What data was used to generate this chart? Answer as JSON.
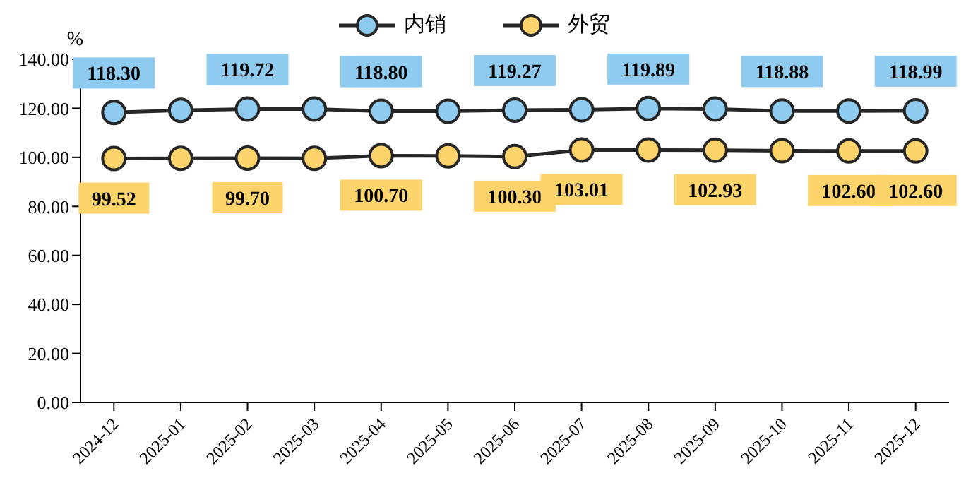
{
  "chart_data": {
    "type": "line",
    "ylabel": "%",
    "categories": [
      "2024-12",
      "2025-01",
      "2025-02",
      "2025-03",
      "2025-04",
      "2025-05",
      "2025-06",
      "2025-07",
      "2025-08",
      "2025-09",
      "2025-10",
      "2025-11",
      "2025-12"
    ],
    "series": [
      {
        "name": "内销",
        "color": "#8ecbef",
        "values": [
          118.3,
          119.2,
          119.72,
          119.7,
          118.8,
          118.8,
          119.27,
          119.4,
          119.89,
          119.7,
          118.88,
          118.9,
          118.99
        ],
        "value_labels": [
          "118.30",
          null,
          "119.72",
          null,
          "118.80",
          null,
          "119.27",
          null,
          "119.89",
          null,
          "118.88",
          null,
          "118.99"
        ]
      },
      {
        "name": "外贸",
        "color": "#fdd46b",
        "values": [
          99.52,
          99.6,
          99.7,
          99.6,
          100.7,
          100.6,
          100.3,
          103.01,
          103.0,
          102.93,
          102.7,
          102.6,
          102.6
        ],
        "value_labels": [
          "99.52",
          null,
          "99.70",
          null,
          "100.70",
          null,
          "100.30",
          "103.01",
          null,
          "102.93",
          null,
          "102.60",
          "102.60"
        ]
      }
    ],
    "ylim": [
      0,
      140
    ],
    "yticks": [
      {
        "value": 0,
        "label": "0.00"
      },
      {
        "value": 20,
        "label": "20.00"
      },
      {
        "value": 40,
        "label": "40.00"
      },
      {
        "value": 60,
        "label": "60.00"
      },
      {
        "value": 80,
        "label": "80.00"
      },
      {
        "value": 100,
        "label": "100.00"
      },
      {
        "value": 120,
        "label": "120.00"
      },
      {
        "value": 140,
        "label": "140.00"
      }
    ],
    "legend": "top",
    "marker": "circle",
    "line_style": "solid"
  }
}
